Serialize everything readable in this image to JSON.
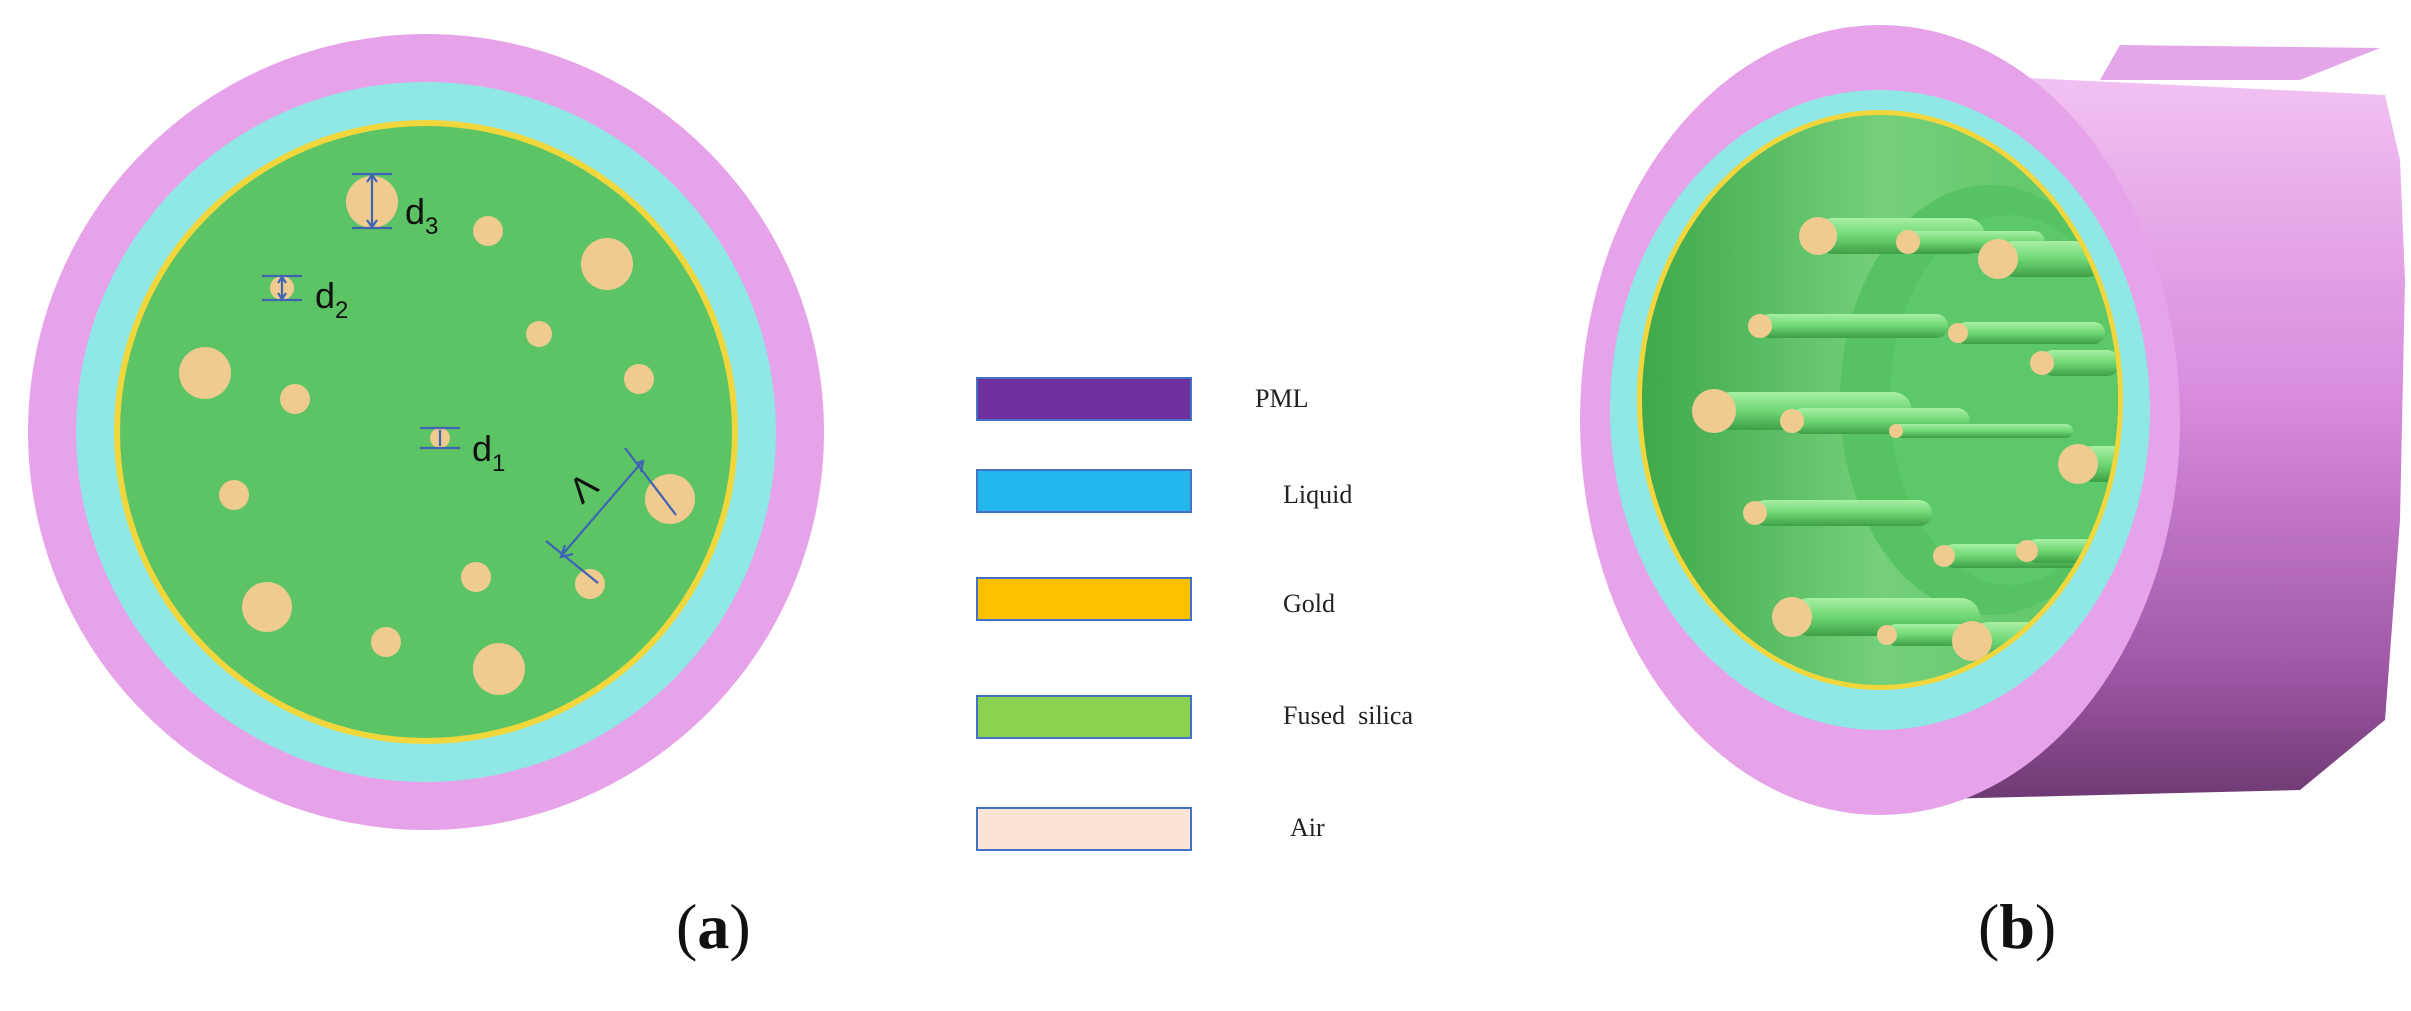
{
  "colors": {
    "pml": "#E6A3EA",
    "liquid": "#8FE8E6",
    "gold": "#F2D73C",
    "silica": "#5CC465",
    "air": "#EFCB8F",
    "dim_line": "#3F63B5",
    "legend_pml": "#7030A0",
    "legend_liquid": "#23B6EB",
    "legend_gold": "#FFC000",
    "legend_silica": "#8CD250",
    "legend_air": "#FBE4D5",
    "legend_border": "#4472C4",
    "pml_3d_side": "#C77ACF",
    "pml_3d_dark": "#7E4383"
  },
  "panel_a": {
    "label_open": "(",
    "label_letter": "a",
    "label_close": ")",
    "d1_base": "d",
    "d1_sub": "1",
    "d2_base": "d",
    "d2_sub": "2",
    "d3_base": "d",
    "d3_sub": "3",
    "pitch_symbol": "Λ"
  },
  "panel_b": {
    "label_open": "(",
    "label_letter": "b",
    "label_close": ")"
  },
  "legend": {
    "items": [
      {
        "label": "PML",
        "color_key": "legend_pml"
      },
      {
        "label": "Liquid",
        "color_key": "legend_liquid"
      },
      {
        "label": "Gold",
        "color_key": "legend_gold"
      },
      {
        "label": "Fused  silica",
        "color_key": "legend_silica"
      },
      {
        "label": "Air",
        "color_key": "legend_air"
      }
    ]
  }
}
